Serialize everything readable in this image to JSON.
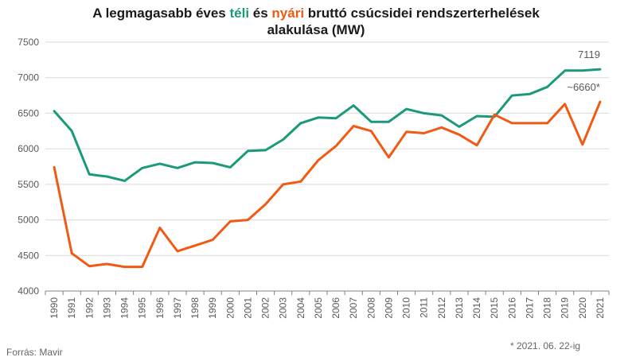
{
  "chart_data": {
    "type": "line",
    "title": {
      "part1": "A legmagasabb éves ",
      "winter_word": "téli",
      "part2": " és ",
      "summer_word": "nyári",
      "part3": " bruttó csúcsidei rendszerterhelések",
      "line2": "alakulása (MW)"
    },
    "xlabel": "",
    "ylabel": "",
    "ylim": [
      4000,
      7500
    ],
    "yticks": [
      4000,
      4500,
      5000,
      5500,
      6000,
      6500,
      7000,
      7500
    ],
    "x": [
      "1990",
      "1991",
      "1992",
      "1993",
      "1994",
      "1995",
      "1996",
      "1997",
      "1998",
      "1999",
      "2000",
      "2001",
      "2002",
      "2003",
      "2004",
      "2005",
      "2006",
      "2007",
      "2008",
      "2009",
      "2010",
      "2011",
      "2012",
      "2013",
      "2014",
      "2015",
      "2016",
      "2017",
      "2018",
      "2019",
      "2020",
      "2021"
    ],
    "grid": "horizontal",
    "legend": "none",
    "series": [
      {
        "key": "winter",
        "color": "#1a9a7a",
        "values": [
          6530,
          6250,
          5640,
          5610,
          5550,
          5730,
          5790,
          5730,
          5810,
          5800,
          5740,
          5970,
          5980,
          6130,
          6360,
          6440,
          6430,
          6610,
          6380,
          6380,
          6560,
          6500,
          6470,
          6310,
          6460,
          6450,
          6750,
          6770,
          6870,
          7100,
          7100,
          7119
        ]
      },
      {
        "key": "summer",
        "color": "#f05a14",
        "values": [
          5740,
          4530,
          4350,
          4380,
          4340,
          4340,
          4890,
          4560,
          4640,
          4720,
          4980,
          5000,
          5220,
          5500,
          5540,
          5840,
          6040,
          6320,
          6250,
          5880,
          6240,
          6220,
          6300,
          6200,
          6050,
          6480,
          6360,
          6360,
          6360,
          6630,
          6060,
          6660
        ]
      }
    ],
    "annotations": [
      {
        "series": "winter",
        "text": "7119"
      },
      {
        "series": "summer",
        "text": "~6660*"
      }
    ]
  },
  "footer": {
    "source": "Forrás: Mavir",
    "footnote": "* 2021. 06. 22-ig"
  },
  "colors": {
    "grid": "#d9d9d9",
    "axis": "#808080",
    "tick_text": "#595959"
  }
}
